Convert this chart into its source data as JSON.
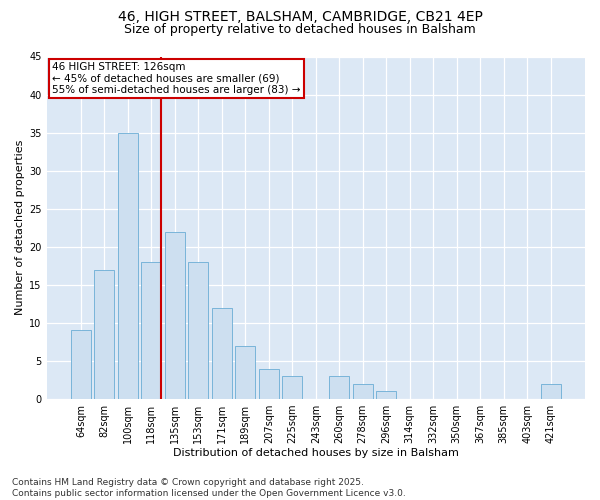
{
  "title1": "46, HIGH STREET, BALSHAM, CAMBRIDGE, CB21 4EP",
  "title2": "Size of property relative to detached houses in Balsham",
  "xlabel": "Distribution of detached houses by size in Balsham",
  "ylabel": "Number of detached properties",
  "categories": [
    "64sqm",
    "82sqm",
    "100sqm",
    "118sqm",
    "135sqm",
    "153sqm",
    "171sqm",
    "189sqm",
    "207sqm",
    "225sqm",
    "243sqm",
    "260sqm",
    "278sqm",
    "296sqm",
    "314sqm",
    "332sqm",
    "350sqm",
    "367sqm",
    "385sqm",
    "403sqm",
    "421sqm"
  ],
  "values": [
    9,
    17,
    35,
    18,
    22,
    18,
    12,
    7,
    4,
    3,
    0,
    3,
    2,
    1,
    0,
    0,
    0,
    0,
    0,
    0,
    2
  ],
  "bar_color": "#cddff0",
  "bar_edge_color": "#6aadd5",
  "background_color": "#dce8f5",
  "fig_background": "#ffffff",
  "vline_color": "#cc0000",
  "annotation_title": "46 HIGH STREET: 126sqm",
  "annotation_line1": "← 45% of detached houses are smaller (69)",
  "annotation_line2": "55% of semi-detached houses are larger (83) →",
  "annotation_box_color": "white",
  "annotation_box_edge": "#cc0000",
  "ylim": [
    0,
    45
  ],
  "yticks": [
    0,
    5,
    10,
    15,
    20,
    25,
    30,
    35,
    40,
    45
  ],
  "footer1": "Contains HM Land Registry data © Crown copyright and database right 2025.",
  "footer2": "Contains public sector information licensed under the Open Government Licence v3.0.",
  "title_fontsize": 10,
  "subtitle_fontsize": 9,
  "axis_label_fontsize": 8,
  "tick_fontsize": 7,
  "footer_fontsize": 6.5,
  "annotation_fontsize": 7.5
}
